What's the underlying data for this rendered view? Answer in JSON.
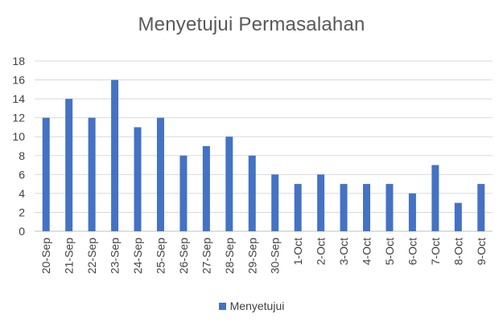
{
  "chart_data": {
    "type": "bar",
    "title": "Menyetujui Permasalahan",
    "xlabel": "",
    "ylabel": "",
    "categories": [
      "20-Sep",
      "21-Sep",
      "22-Sep",
      "23-Sep",
      "24-Sep",
      "25-Sep",
      "26-Sep",
      "27-Sep",
      "28-Sep",
      "29-Sep",
      "30-Sep",
      "1-Oct",
      "2-Oct",
      "3-Oct",
      "4-Oct",
      "5-Oct",
      "6-Oct",
      "7-Oct",
      "8-Oct",
      "9-Oct"
    ],
    "series": [
      {
        "name": "Menyetujui",
        "values": [
          12,
          14,
          12,
          16,
          11,
          12,
          8,
          9,
          10,
          8,
          6,
          5,
          6,
          5,
          5,
          5,
          4,
          7,
          3,
          5
        ]
      }
    ],
    "ylim": [
      0,
      18
    ],
    "yticks": [
      "0",
      "2",
      "4",
      "6",
      "8",
      "10",
      "12",
      "14",
      "16",
      "18"
    ],
    "grid": true,
    "legend_position": "bottom",
    "colors": {
      "bar": "#4472C4",
      "grid": "#D9D9D9",
      "axis": "#BFBFBF",
      "tick_text": "#404040"
    }
  }
}
